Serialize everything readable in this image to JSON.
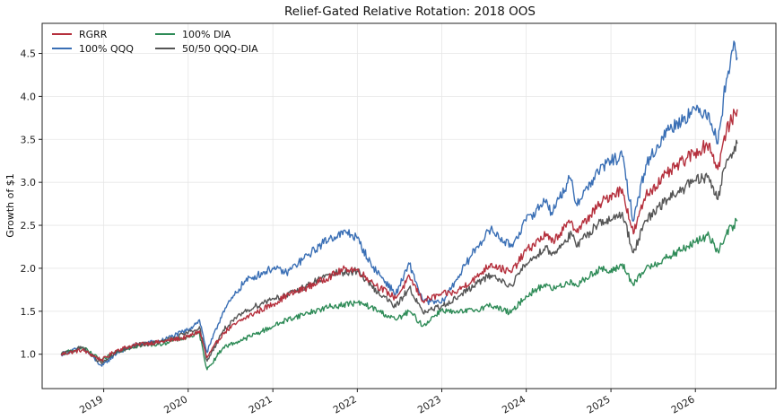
{
  "chart_data": {
    "type": "line",
    "title": "Relief-Gated Relative Rotation: 2018 OOS",
    "xlabel": "",
    "ylabel": "Growth of $1",
    "xlim": [
      "2018-04-10",
      "2026-12-15"
    ],
    "ylim": [
      0.6,
      4.85
    ],
    "grid": true,
    "legend_position": "top-left",
    "x_ticks": [
      "2019",
      "2020",
      "2021",
      "2022",
      "2023",
      "2024",
      "2025",
      "2026"
    ],
    "y_ticks": [
      "1.0",
      "1.5",
      "2.0",
      "2.5",
      "3.0",
      "3.5",
      "4.0",
      "4.5"
    ],
    "series": [
      {
        "name": "RGRR",
        "color": "#b5303d",
        "points": [
          [
            "2018-07-01",
            1.0
          ],
          [
            "2018-10-01",
            1.05
          ],
          [
            "2018-12-24",
            0.93
          ],
          [
            "2019-03-01",
            1.05
          ],
          [
            "2019-06-01",
            1.12
          ],
          [
            "2019-09-01",
            1.14
          ],
          [
            "2019-12-31",
            1.2
          ],
          [
            "2020-02-19",
            1.27
          ],
          [
            "2020-03-23",
            0.96
          ],
          [
            "2020-06-01",
            1.25
          ],
          [
            "2020-09-01",
            1.42
          ],
          [
            "2020-12-31",
            1.58
          ],
          [
            "2021-03-01",
            1.68
          ],
          [
            "2021-06-01",
            1.78
          ],
          [
            "2021-09-01",
            1.9
          ],
          [
            "2021-11-15",
            2.0
          ],
          [
            "2021-12-31",
            1.98
          ],
          [
            "2022-03-01",
            1.85
          ],
          [
            "2022-06-16",
            1.65
          ],
          [
            "2022-08-15",
            1.9
          ],
          [
            "2022-10-12",
            1.62
          ],
          [
            "2022-12-31",
            1.7
          ],
          [
            "2023-03-01",
            1.72
          ],
          [
            "2023-06-01",
            1.9
          ],
          [
            "2023-07-31",
            2.05
          ],
          [
            "2023-10-27",
            1.95
          ],
          [
            "2023-12-31",
            2.2
          ],
          [
            "2024-03-28",
            2.4
          ],
          [
            "2024-04-19",
            2.3
          ],
          [
            "2024-07-15",
            2.55
          ],
          [
            "2024-08-05",
            2.42
          ],
          [
            "2024-11-15",
            2.75
          ],
          [
            "2024-12-31",
            2.85
          ],
          [
            "2025-02-19",
            2.92
          ],
          [
            "2025-04-08",
            2.4
          ],
          [
            "2025-06-01",
            2.85
          ],
          [
            "2025-09-01",
            3.1
          ],
          [
            "2025-12-31",
            3.35
          ],
          [
            "2026-03-01",
            3.45
          ],
          [
            "2026-04-08",
            3.15
          ],
          [
            "2026-05-15",
            3.6
          ],
          [
            "2026-07-01",
            3.85
          ]
        ]
      },
      {
        "name": "100% QQQ",
        "color": "#3a6fb5",
        "points": [
          [
            "2018-07-01",
            1.0
          ],
          [
            "2018-10-01",
            1.08
          ],
          [
            "2018-12-24",
            0.86
          ],
          [
            "2019-03-01",
            1.02
          ],
          [
            "2019-06-01",
            1.12
          ],
          [
            "2019-09-01",
            1.15
          ],
          [
            "2019-12-31",
            1.28
          ],
          [
            "2020-02-19",
            1.4
          ],
          [
            "2020-03-23",
            1.02
          ],
          [
            "2020-06-01",
            1.5
          ],
          [
            "2020-09-01",
            1.85
          ],
          [
            "2020-12-31",
            2.0
          ],
          [
            "2021-03-01",
            1.95
          ],
          [
            "2021-06-01",
            2.15
          ],
          [
            "2021-09-01",
            2.35
          ],
          [
            "2021-11-19",
            2.42
          ],
          [
            "2021-12-31",
            2.35
          ],
          [
            "2022-03-01",
            2.05
          ],
          [
            "2022-06-16",
            1.7
          ],
          [
            "2022-08-15",
            2.05
          ],
          [
            "2022-10-12",
            1.62
          ],
          [
            "2022-12-31",
            1.6
          ],
          [
            "2023-03-01",
            1.85
          ],
          [
            "2023-06-01",
            2.25
          ],
          [
            "2023-07-31",
            2.45
          ],
          [
            "2023-10-27",
            2.25
          ],
          [
            "2023-12-31",
            2.55
          ],
          [
            "2024-03-28",
            2.8
          ],
          [
            "2024-04-19",
            2.65
          ],
          [
            "2024-07-10",
            3.05
          ],
          [
            "2024-08-05",
            2.75
          ],
          [
            "2024-11-15",
            3.15
          ],
          [
            "2024-12-31",
            3.25
          ],
          [
            "2025-02-19",
            3.3
          ],
          [
            "2025-04-08",
            2.55
          ],
          [
            "2025-06-01",
            3.2
          ],
          [
            "2025-09-01",
            3.6
          ],
          [
            "2025-12-31",
            3.85
          ],
          [
            "2026-03-01",
            3.8
          ],
          [
            "2026-04-08",
            3.45
          ],
          [
            "2026-05-15",
            4.2
          ],
          [
            "2026-06-20",
            4.62
          ],
          [
            "2026-07-01",
            4.45
          ]
        ]
      },
      {
        "name": "100% DIA",
        "color": "#2e8b57",
        "points": [
          [
            "2018-07-01",
            1.0
          ],
          [
            "2018-10-01",
            1.08
          ],
          [
            "2018-12-24",
            0.92
          ],
          [
            "2019-03-01",
            1.04
          ],
          [
            "2019-06-01",
            1.1
          ],
          [
            "2019-09-01",
            1.12
          ],
          [
            "2019-12-31",
            1.2
          ],
          [
            "2020-02-19",
            1.24
          ],
          [
            "2020-03-23",
            0.82
          ],
          [
            "2020-06-01",
            1.08
          ],
          [
            "2020-09-01",
            1.18
          ],
          [
            "2020-12-31",
            1.32
          ],
          [
            "2021-03-01",
            1.4
          ],
          [
            "2021-06-01",
            1.48
          ],
          [
            "2021-09-01",
            1.55
          ],
          [
            "2021-12-31",
            1.6
          ],
          [
            "2022-03-01",
            1.55
          ],
          [
            "2022-06-16",
            1.4
          ],
          [
            "2022-08-15",
            1.5
          ],
          [
            "2022-10-12",
            1.33
          ],
          [
            "2022-12-31",
            1.52
          ],
          [
            "2023-03-01",
            1.48
          ],
          [
            "2023-06-01",
            1.52
          ],
          [
            "2023-07-31",
            1.57
          ],
          [
            "2023-10-27",
            1.48
          ],
          [
            "2023-12-31",
            1.68
          ],
          [
            "2024-03-28",
            1.82
          ],
          [
            "2024-04-19",
            1.75
          ],
          [
            "2024-07-15",
            1.85
          ],
          [
            "2024-08-05",
            1.8
          ],
          [
            "2024-11-15",
            2.0
          ],
          [
            "2024-12-31",
            1.95
          ],
          [
            "2025-02-19",
            2.05
          ],
          [
            "2025-04-08",
            1.8
          ],
          [
            "2025-06-01",
            2.0
          ],
          [
            "2025-09-01",
            2.12
          ],
          [
            "2025-12-31",
            2.3
          ],
          [
            "2026-03-01",
            2.38
          ],
          [
            "2026-04-08",
            2.2
          ],
          [
            "2026-05-15",
            2.4
          ],
          [
            "2026-07-01",
            2.55
          ]
        ]
      },
      {
        "name": "50/50 QQQ-DIA",
        "color": "#555555",
        "points": [
          [
            "2018-07-01",
            1.0
          ],
          [
            "2018-10-01",
            1.08
          ],
          [
            "2018-12-24",
            0.89
          ],
          [
            "2019-03-01",
            1.03
          ],
          [
            "2019-06-01",
            1.11
          ],
          [
            "2019-09-01",
            1.14
          ],
          [
            "2019-12-31",
            1.24
          ],
          [
            "2020-02-19",
            1.32
          ],
          [
            "2020-03-23",
            0.92
          ],
          [
            "2020-06-01",
            1.28
          ],
          [
            "2020-09-01",
            1.5
          ],
          [
            "2020-12-31",
            1.65
          ],
          [
            "2021-03-01",
            1.68
          ],
          [
            "2021-06-01",
            1.8
          ],
          [
            "2021-09-01",
            1.93
          ],
          [
            "2021-12-31",
            1.97
          ],
          [
            "2022-03-01",
            1.8
          ],
          [
            "2022-06-16",
            1.55
          ],
          [
            "2022-08-15",
            1.78
          ],
          [
            "2022-10-12",
            1.48
          ],
          [
            "2022-12-31",
            1.56
          ],
          [
            "2023-03-01",
            1.65
          ],
          [
            "2023-06-01",
            1.82
          ],
          [
            "2023-07-31",
            1.92
          ],
          [
            "2023-10-27",
            1.8
          ],
          [
            "2023-12-31",
            2.05
          ],
          [
            "2024-03-28",
            2.25
          ],
          [
            "2024-04-19",
            2.15
          ],
          [
            "2024-07-15",
            2.4
          ],
          [
            "2024-08-05",
            2.25
          ],
          [
            "2024-11-15",
            2.55
          ],
          [
            "2024-12-31",
            2.55
          ],
          [
            "2025-02-19",
            2.65
          ],
          [
            "2025-04-08",
            2.18
          ],
          [
            "2025-06-01",
            2.55
          ],
          [
            "2025-09-01",
            2.8
          ],
          [
            "2025-12-31",
            3.02
          ],
          [
            "2026-03-01",
            3.05
          ],
          [
            "2026-04-08",
            2.8
          ],
          [
            "2026-05-15",
            3.25
          ],
          [
            "2026-07-01",
            3.45
          ]
        ]
      }
    ]
  }
}
